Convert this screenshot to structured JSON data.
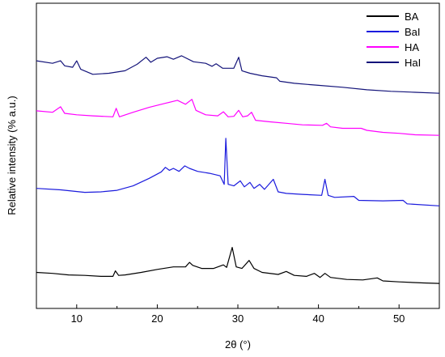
{
  "chart_data": {
    "type": "line",
    "xlabel": "2θ (°)",
    "ylabel": "Relative intensity (% a.u.)",
    "xlim": [
      5,
      55
    ],
    "xticks": [
      10,
      20,
      30,
      40,
      50
    ],
    "yticks_shown": false,
    "legend": "top-right",
    "series": [
      {
        "name": "BA",
        "color": "#000000",
        "points": [
          [
            5,
            -0.8
          ],
          [
            7,
            -1.0
          ],
          [
            9,
            -1.3
          ],
          [
            11,
            -1.4
          ],
          [
            13,
            -1.6
          ],
          [
            14.5,
            -1.6
          ],
          [
            14.8,
            -0.5
          ],
          [
            15.2,
            -1.4
          ],
          [
            16,
            -1.3
          ],
          [
            18,
            -0.8
          ],
          [
            20,
            -0.2
          ],
          [
            22,
            0.3
          ],
          [
            23.5,
            0.3
          ],
          [
            24,
            1.2
          ],
          [
            24.4,
            0.6
          ],
          [
            25.5,
            0.0
          ],
          [
            27,
            0.0
          ],
          [
            28.2,
            0.7
          ],
          [
            28.6,
            0.2
          ],
          [
            29.3,
            4.2
          ],
          [
            29.8,
            0.3
          ],
          [
            30.5,
            0.0
          ],
          [
            31.4,
            1.6
          ],
          [
            32,
            0.0
          ],
          [
            33,
            -0.8
          ],
          [
            35,
            -1.2
          ],
          [
            36,
            -0.6
          ],
          [
            37,
            -1.4
          ],
          [
            38.5,
            -1.6
          ],
          [
            39.5,
            -1.0
          ],
          [
            40.2,
            -1.8
          ],
          [
            40.8,
            -1.0
          ],
          [
            41.5,
            -1.8
          ],
          [
            43.5,
            -2.2
          ],
          [
            45.5,
            -2.3
          ],
          [
            47.3,
            -1.9
          ],
          [
            48,
            -2.5
          ],
          [
            50,
            -2.7
          ],
          [
            53,
            -2.9
          ],
          [
            55,
            -3.0
          ]
        ]
      },
      {
        "name": "BaI",
        "color": "#1b1bdd",
        "points": [
          [
            5,
            16.0
          ],
          [
            8,
            15.7
          ],
          [
            11,
            15.2
          ],
          [
            13,
            15.3
          ],
          [
            15,
            15.6
          ],
          [
            17,
            16.5
          ],
          [
            19,
            18.0
          ],
          [
            20.5,
            19.3
          ],
          [
            21,
            20.2
          ],
          [
            21.5,
            19.6
          ],
          [
            22,
            20.0
          ],
          [
            22.7,
            19.4
          ],
          [
            23.4,
            20.5
          ],
          [
            24,
            20.0
          ],
          [
            25,
            19.4
          ],
          [
            26.5,
            19.0
          ],
          [
            27.8,
            18.5
          ],
          [
            28.3,
            16.8
          ],
          [
            28.5,
            26.0
          ],
          [
            28.8,
            16.8
          ],
          [
            29.5,
            16.5
          ],
          [
            30.3,
            17.5
          ],
          [
            30.8,
            16.3
          ],
          [
            31.5,
            17.2
          ],
          [
            32,
            16.0
          ],
          [
            32.7,
            16.8
          ],
          [
            33.3,
            15.8
          ],
          [
            34.4,
            17.8
          ],
          [
            35,
            15.3
          ],
          [
            36,
            15.0
          ],
          [
            38,
            14.8
          ],
          [
            40.4,
            14.6
          ],
          [
            40.8,
            17.8
          ],
          [
            41.2,
            14.6
          ],
          [
            42,
            14.2
          ],
          [
            44.4,
            14.4
          ],
          [
            45,
            13.6
          ],
          [
            48,
            13.5
          ],
          [
            50.5,
            13.6
          ],
          [
            51,
            12.9
          ],
          [
            55,
            12.5
          ]
        ]
      },
      {
        "name": "HA",
        "color": "#ff00ff",
        "points": [
          [
            5,
            31.5
          ],
          [
            7,
            31.2
          ],
          [
            8,
            32.3
          ],
          [
            8.5,
            31.0
          ],
          [
            10,
            30.7
          ],
          [
            12,
            30.5
          ],
          [
            14.5,
            30.3
          ],
          [
            14.9,
            32.0
          ],
          [
            15.3,
            30.3
          ],
          [
            17,
            31.2
          ],
          [
            19,
            32.2
          ],
          [
            21,
            33.0
          ],
          [
            22.5,
            33.6
          ],
          [
            23.5,
            32.8
          ],
          [
            24.3,
            33.8
          ],
          [
            24.8,
            31.6
          ],
          [
            26,
            30.7
          ],
          [
            27.5,
            30.5
          ],
          [
            28.2,
            31.3
          ],
          [
            28.8,
            30.3
          ],
          [
            29.5,
            30.4
          ],
          [
            30.1,
            31.6
          ],
          [
            30.6,
            30.3
          ],
          [
            31.2,
            30.5
          ],
          [
            31.7,
            31.2
          ],
          [
            32.2,
            29.6
          ],
          [
            34,
            29.3
          ],
          [
            36,
            29.0
          ],
          [
            38,
            28.7
          ],
          [
            40.5,
            28.6
          ],
          [
            41,
            29.0
          ],
          [
            41.5,
            28.3
          ],
          [
            43,
            28.0
          ],
          [
            45.3,
            28.0
          ],
          [
            46,
            27.6
          ],
          [
            48,
            27.2
          ],
          [
            50,
            27.0
          ],
          [
            52,
            26.7
          ],
          [
            55,
            26.6
          ]
        ]
      },
      {
        "name": "HaI",
        "color": "#14147a",
        "points": [
          [
            5,
            41.5
          ],
          [
            7,
            41.0
          ],
          [
            8,
            41.5
          ],
          [
            8.5,
            40.5
          ],
          [
            9.5,
            40.2
          ],
          [
            10,
            41.5
          ],
          [
            10.5,
            39.8
          ],
          [
            12,
            38.8
          ],
          [
            14,
            39.0
          ],
          [
            16,
            39.5
          ],
          [
            17.5,
            40.8
          ],
          [
            18.6,
            42.2
          ],
          [
            19.2,
            41.2
          ],
          [
            20,
            42.0
          ],
          [
            21.2,
            42.3
          ],
          [
            22,
            41.8
          ],
          [
            23,
            42.5
          ],
          [
            24.5,
            41.3
          ],
          [
            26,
            41.0
          ],
          [
            26.8,
            40.4
          ],
          [
            27.3,
            40.9
          ],
          [
            28.1,
            40.0
          ],
          [
            29.5,
            40.0
          ],
          [
            30.1,
            42.2
          ],
          [
            30.5,
            39.5
          ],
          [
            31.5,
            39.0
          ],
          [
            33,
            38.5
          ],
          [
            34.8,
            38.1
          ],
          [
            35.2,
            37.4
          ],
          [
            37,
            37.0
          ],
          [
            40,
            36.6
          ],
          [
            43,
            36.2
          ],
          [
            46,
            35.7
          ],
          [
            49,
            35.4
          ],
          [
            52,
            35.2
          ],
          [
            55,
            35.0
          ]
        ]
      }
    ]
  }
}
